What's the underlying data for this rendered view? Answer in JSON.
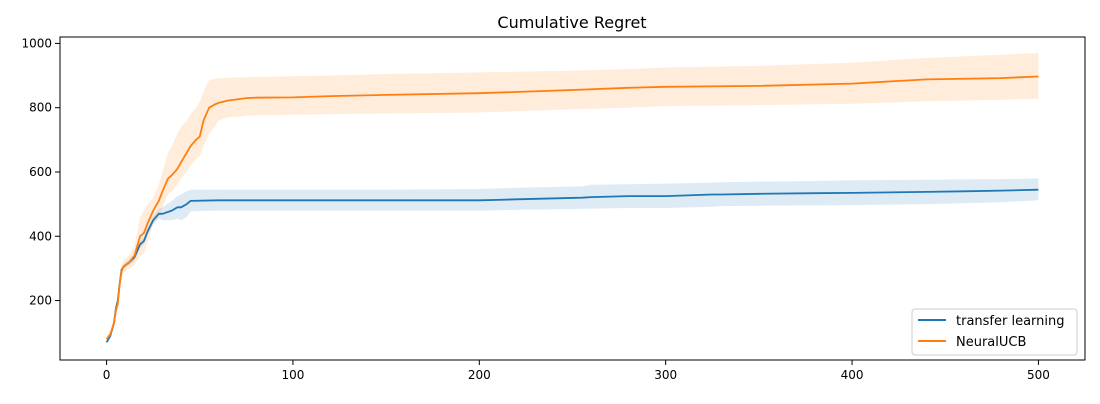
{
  "chart_data": {
    "type": "line",
    "title": "Cumulative Regret",
    "xlabel": "",
    "ylabel": "",
    "xlim": [
      -25,
      525
    ],
    "ylim": [
      15,
      1020
    ],
    "xticks": [
      0,
      100,
      200,
      300,
      400,
      500
    ],
    "yticks": [
      200,
      400,
      600,
      800,
      1000
    ],
    "grid": false,
    "legend_position": "lower right",
    "series": [
      {
        "name": "transfer learning",
        "color": "#1f77b4",
        "band_color": "#1f77b4",
        "x": [
          0,
          2,
          4,
          5,
          6,
          7,
          8,
          9,
          10,
          12,
          15,
          18,
          20,
          22,
          25,
          28,
          30,
          35,
          38,
          40,
          43,
          45,
          60,
          100,
          150,
          200,
          210,
          220,
          255,
          260,
          280,
          300,
          325,
          330,
          350,
          380,
          400,
          440,
          460,
          480,
          500
        ],
        "y": [
          70,
          90,
          130,
          175,
          200,
          250,
          295,
          305,
          310,
          318,
          335,
          375,
          385,
          415,
          450,
          470,
          470,
          480,
          490,
          490,
          500,
          510,
          512,
          512,
          512,
          512,
          513,
          515,
          520,
          522,
          525,
          525,
          530,
          530,
          532,
          534,
          535,
          538,
          540,
          542,
          545
        ],
        "upper": [
          75,
          95,
          135,
          180,
          205,
          258,
          300,
          310,
          318,
          326,
          345,
          385,
          395,
          425,
          462,
          485,
          490,
          510,
          525,
          530,
          540,
          545,
          545,
          545,
          545,
          547,
          549,
          551,
          555,
          560,
          562,
          564,
          567,
          568,
          570,
          572,
          574,
          576,
          577,
          578,
          580
        ],
        "lower": [
          65,
          85,
          125,
          170,
          195,
          242,
          290,
          300,
          302,
          310,
          325,
          365,
          375,
          405,
          438,
          455,
          450,
          450,
          455,
          450,
          460,
          478,
          480,
          480,
          480,
          480,
          481,
          482,
          485,
          486,
          488,
          488,
          492,
          494,
          495,
          496,
          497,
          500,
          503,
          506,
          512
        ]
      },
      {
        "name": "NeuralUCB",
        "color": "#ff7f0e",
        "band_color": "#ff7f0e",
        "x": [
          0,
          2,
          4,
          5,
          6,
          7,
          8,
          9,
          10,
          12,
          15,
          18,
          20,
          22,
          25,
          28,
          30,
          33,
          35,
          38,
          40,
          43,
          45,
          48,
          50,
          52,
          55,
          58,
          60,
          65,
          70,
          75,
          80,
          100,
          120,
          150,
          200,
          250,
          280,
          300,
          350,
          400,
          440,
          480,
          500
        ],
        "y": [
          80,
          95,
          130,
          170,
          190,
          250,
          290,
          305,
          310,
          318,
          340,
          400,
          410,
          440,
          480,
          510,
          540,
          580,
          590,
          610,
          630,
          660,
          680,
          700,
          710,
          760,
          800,
          810,
          815,
          822,
          826,
          830,
          831,
          832,
          836,
          840,
          845,
          855,
          862,
          865,
          868,
          875,
          888,
          892,
          897
        ],
        "upper": [
          90,
          105,
          145,
          185,
          210,
          270,
          310,
          325,
          330,
          340,
          370,
          460,
          480,
          500,
          520,
          560,
          600,
          660,
          680,
          720,
          740,
          760,
          780,
          800,
          820,
          850,
          885,
          890,
          892,
          893,
          894,
          895,
          896,
          898,
          900,
          905,
          910,
          915,
          920,
          925,
          930,
          940,
          955,
          965,
          970
        ],
        "lower": [
          70,
          85,
          115,
          155,
          170,
          230,
          270,
          285,
          290,
          298,
          310,
          340,
          345,
          380,
          440,
          460,
          490,
          530,
          540,
          560,
          580,
          600,
          620,
          640,
          650,
          680,
          720,
          740,
          760,
          770,
          772,
          775,
          776,
          778,
          780,
          782,
          785,
          795,
          800,
          805,
          808,
          812,
          820,
          825,
          828
        ]
      }
    ]
  }
}
